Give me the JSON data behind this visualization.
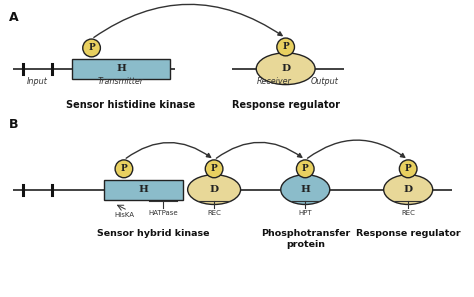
{
  "background_color": "#ffffff",
  "panel_A_label": "A",
  "panel_B_label": "B",
  "light_blue": "#8BBCCA",
  "tan_oval": "#E8D898",
  "yellow_circle": "#E8D060",
  "dark_outline": "#222222",
  "text_color": "#333333",
  "title_A_sensor": "Sensor histidine kinase",
  "title_A_response": "Response regulator",
  "title_B_sensor": "Sensor hybrid kinase",
  "title_B_phospho": "Phosphotransfer\nprotein",
  "title_B_response": "Response regulator",
  "label_input": "Input",
  "label_transmitter": "Transmitter",
  "label_receiver": "Receiver",
  "label_output": "Output",
  "label_HisKA": "HisKA",
  "label_HATPase": "HATPase",
  "label_REC": "REC",
  "label_HPT": "HPT",
  "label_H": "H",
  "label_D": "D",
  "label_P": "P"
}
